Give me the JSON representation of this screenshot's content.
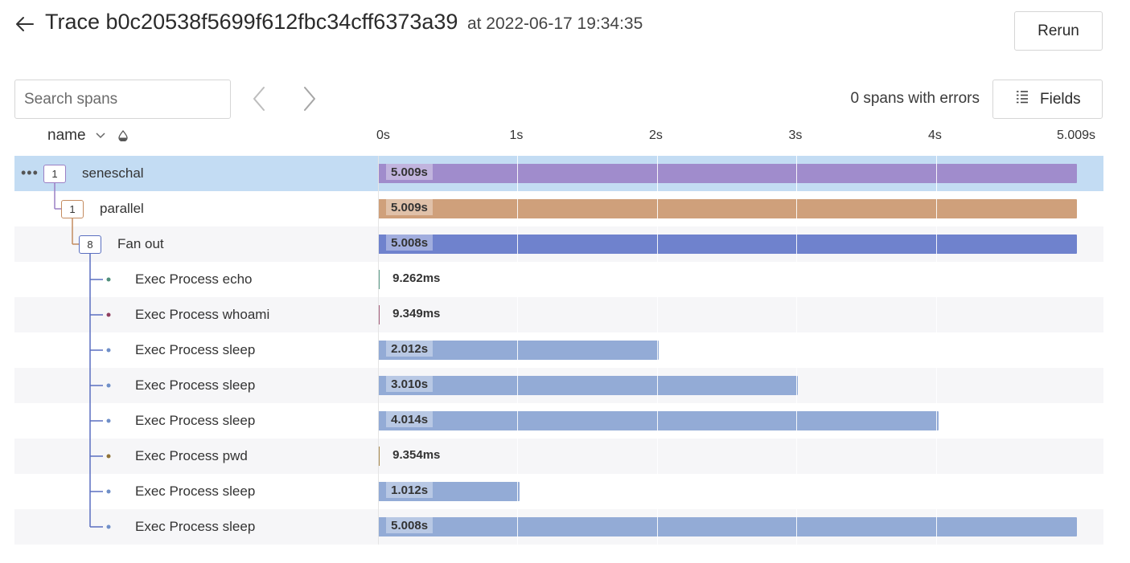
{
  "header": {
    "title": "Trace b0c20538f5699f612fbc34cff6373a39",
    "timestamp": "at 2022-06-17 19:34:35",
    "rerun_label": "Rerun"
  },
  "toolbar": {
    "search_placeholder": "Search spans",
    "errors_text": "0 spans with errors",
    "fields_label": "Fields"
  },
  "columns": {
    "name_label": "name"
  },
  "timeline": {
    "ticks": [
      "0s",
      "1s",
      "2s",
      "3s",
      "4s",
      "5.009s"
    ],
    "total_seconds": 5.009
  },
  "spans": [
    {
      "name": "seneschal",
      "count": "1",
      "duration_label": "5.009s",
      "start_s": 0,
      "duration_s": 5.009,
      "color": "#a08ccc",
      "count_color": "#9b7fc4",
      "selected": true
    },
    {
      "name": "parallel",
      "count": "1",
      "duration_label": "5.009s",
      "start_s": 0,
      "duration_s": 5.009,
      "color": "#cfa07b",
      "count_color": "#c48b5f"
    },
    {
      "name": "Fan out",
      "count": "8",
      "duration_label": "5.008s",
      "start_s": 0.001,
      "duration_s": 5.008,
      "color": "#6f82cd",
      "count_color": "#5a6fc0"
    },
    {
      "name": "Exec Process echo",
      "duration_label": "9.262ms",
      "start_s": 0.001,
      "duration_s": 0.009262,
      "color": "#5a9b86",
      "dot_color": "#4f8e7a"
    },
    {
      "name": "Exec Process whoami",
      "duration_label": "9.349ms",
      "start_s": 0.001,
      "duration_s": 0.009349,
      "color": "#a25a78",
      "dot_color": "#8f3f60"
    },
    {
      "name": "Exec Process sleep",
      "duration_label": "2.012s",
      "start_s": 0.001,
      "duration_s": 2.012,
      "color": "#93abd6",
      "dot_color": "#6f8fc8"
    },
    {
      "name": "Exec Process sleep",
      "duration_label": "3.010s",
      "start_s": 0.001,
      "duration_s": 3.01,
      "color": "#93abd6",
      "dot_color": "#6f8fc8"
    },
    {
      "name": "Exec Process sleep",
      "duration_label": "4.014s",
      "start_s": 0.001,
      "duration_s": 4.014,
      "color": "#93abd6",
      "dot_color": "#6f8fc8"
    },
    {
      "name": "Exec Process pwd",
      "duration_label": "9.354ms",
      "start_s": 0.001,
      "duration_s": 0.009354,
      "color": "#a6864a",
      "dot_color": "#8f7237"
    },
    {
      "name": "Exec Process sleep",
      "duration_label": "1.012s",
      "start_s": 0.001,
      "duration_s": 1.012,
      "color": "#93abd6",
      "dot_color": "#6f8fc8"
    },
    {
      "name": "Exec Process sleep",
      "duration_label": "5.008s",
      "start_s": 0.001,
      "duration_s": 5.008,
      "color": "#93abd6",
      "dot_color": "#6f8fc8"
    }
  ]
}
